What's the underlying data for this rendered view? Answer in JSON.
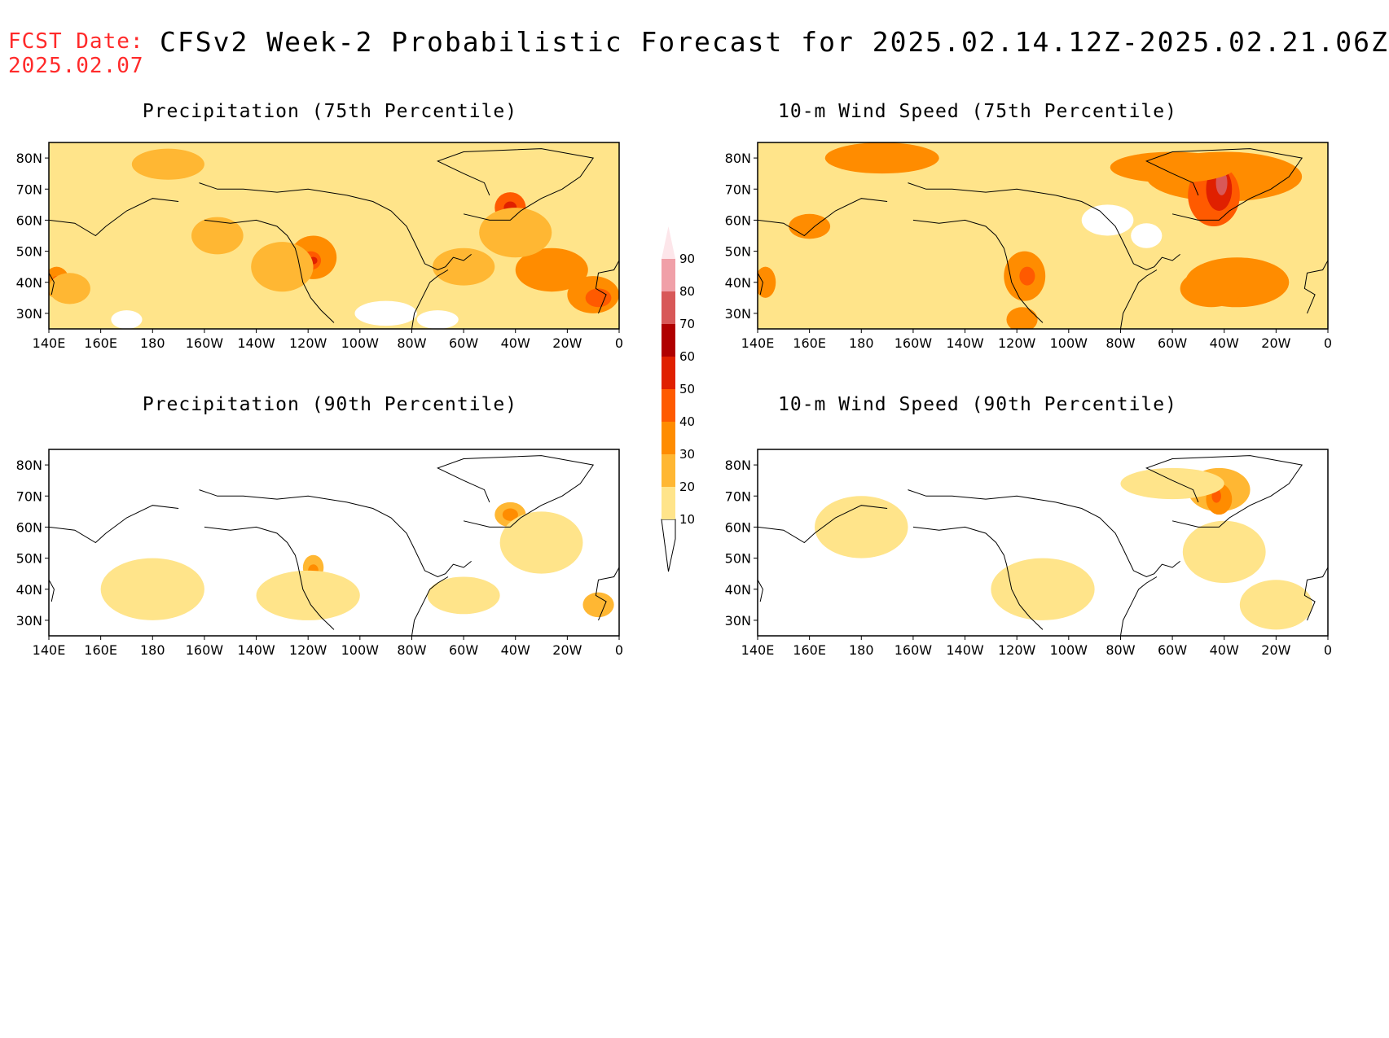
{
  "header": {
    "fcst_label": "FCST Date:",
    "fcst_date": "2025.02.07",
    "title": "CFSv2 Week-2 Probabilistic Forecast for 2025.02.14.12Z-2025.02.21.06Z"
  },
  "panels": [
    {
      "id": "precip-75",
      "title": "Precipitation (75th Percentile)"
    },
    {
      "id": "wind-75",
      "title": "10-m Wind Speed (75th Percentile)"
    },
    {
      "id": "precip-90",
      "title": "Precipitation (90th Percentile)"
    },
    {
      "id": "wind-90",
      "title": "10-m Wind Speed (90th Percentile)"
    }
  ],
  "axes": {
    "x_labels": [
      "140E",
      "160E",
      "180",
      "160W",
      "140W",
      "120W",
      "100W",
      "80W",
      "60W",
      "40W",
      "20W",
      "0"
    ],
    "y_labels": [
      "80N",
      "70N",
      "60N",
      "50N",
      "40N",
      "30N"
    ],
    "lon_range": [
      140,
      360
    ],
    "lat_range": [
      25,
      85
    ]
  },
  "colorbar": {
    "levels": [
      "10",
      "20",
      "30",
      "40",
      "50",
      "60",
      "70",
      "80",
      "90"
    ],
    "colors": [
      "#fff6c8",
      "#ffe48a",
      "#ffb733",
      "#ff8c00",
      "#ff5a00",
      "#e02000",
      "#b00000",
      "#d85858",
      "#f0a0a8",
      "#fde6ea"
    ]
  }
}
